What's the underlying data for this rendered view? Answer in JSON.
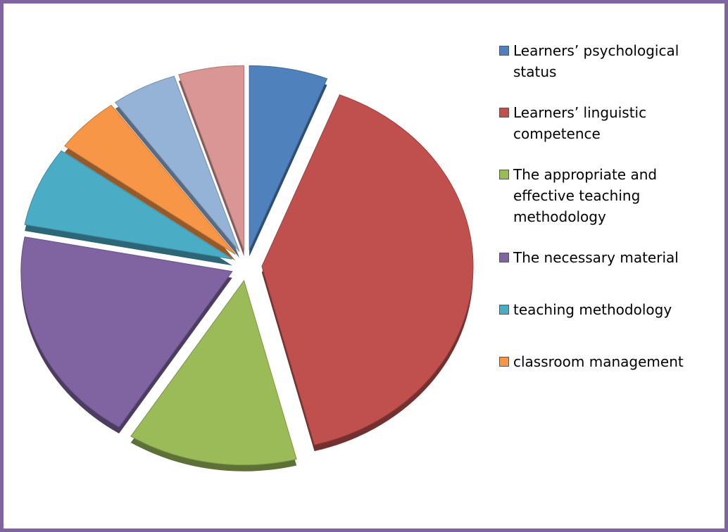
{
  "chart_data": {
    "type": "pie",
    "categories": [
      "Learners’ psychological status",
      "Learners’ linguistic competence",
      "The appropriate and effective teaching methodology",
      "The necessary material",
      "teaching methodology",
      "classroom management",
      null,
      null
    ],
    "values": [
      6,
      40,
      13,
      19,
      7,
      5,
      5,
      5
    ],
    "colors": [
      "#4f81bd",
      "#c0504d",
      "#9bbb59",
      "#8064a2",
      "#4bacc6",
      "#f79646",
      "#95b3d7",
      "#d99694"
    ],
    "legend": "right"
  }
}
